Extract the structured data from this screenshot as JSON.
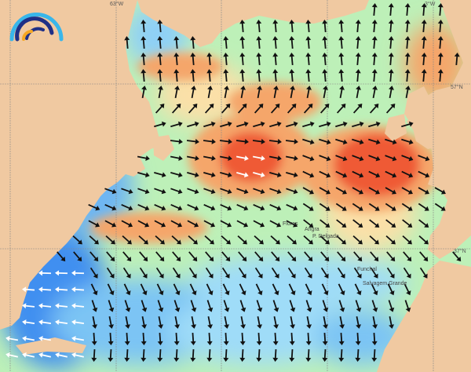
{
  "map": {
    "grid_labels": {
      "lon_left": "63°W",
      "lon_right": "3°W",
      "lat_top": "57°N",
      "lat_bottom": "37°N"
    },
    "places": [
      "Flores",
      "Angra",
      "P. Delgada",
      "Funchal",
      "Salvagem Grande"
    ],
    "colors": {
      "land": "#f0c9a1",
      "calm": "#3f8ff0",
      "low": "#9fdcf8",
      "moderate": "#bdf0b8",
      "elevated": "#fbe0a8",
      "high": "#f5a66a",
      "very_high": "#ef5a34"
    },
    "arrow_colors": {
      "primary": "#111111",
      "secondary": "#ffffff"
    }
  },
  "logo": {
    "name": "wave-logo",
    "colors": [
      "#39b6ea",
      "#1f2f86",
      "#f5a623"
    ]
  }
}
